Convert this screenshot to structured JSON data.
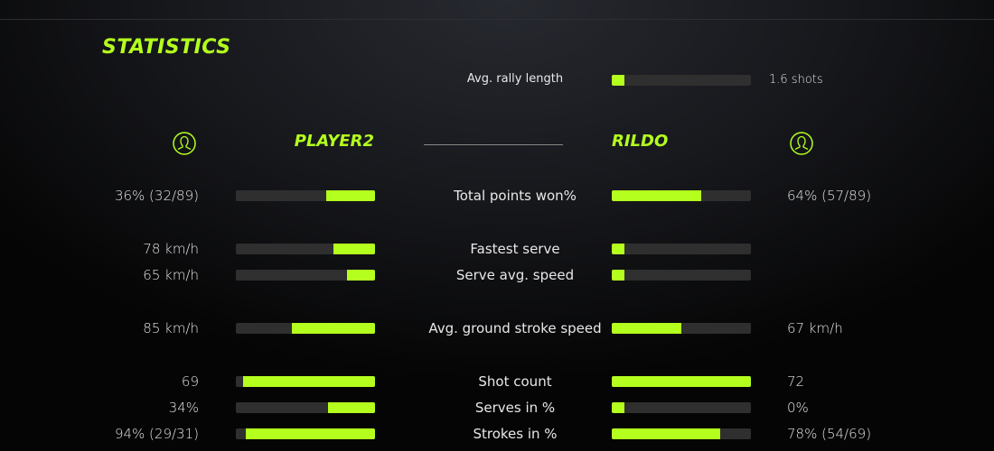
{
  "title": "STATISTICS",
  "accent": "#b4ff1e",
  "rally": {
    "label": "Avg. rally length",
    "value": "1.6 shots",
    "fill": 0.09
  },
  "players": {
    "left": {
      "name": "PLAYER2",
      "icon": "user-circle-icon"
    },
    "right": {
      "name": "RILDO",
      "icon": "user-circle-icon"
    }
  },
  "rows": [
    {
      "label": "Total points won%",
      "left": "36% (32/89)",
      "right": "64% (57/89)",
      "left_fill": 0.35,
      "right_fill": 0.64
    },
    {
      "label": "Fastest serve",
      "left": "78 km/h",
      "right": "",
      "left_fill": 0.3,
      "right_fill": 0.09
    },
    {
      "label": "Serve avg. speed",
      "left": "65 km/h",
      "right": "",
      "left_fill": 0.2,
      "right_fill": 0.09
    },
    {
      "label": "Avg. ground stroke speed",
      "left": "85 km/h",
      "right": "67 km/h",
      "left_fill": 0.6,
      "right_fill": 0.5
    },
    {
      "label": "Shot count",
      "left": "69",
      "right": "72",
      "left_fill": 0.95,
      "right_fill": 1.0
    },
    {
      "label": "Serves in %",
      "left": "34%",
      "right": "0%",
      "left_fill": 0.34,
      "right_fill": 0.09
    },
    {
      "label": "Strokes in %",
      "left": "94% (29/31)",
      "right": "78% (54/69)",
      "left_fill": 0.93,
      "right_fill": 0.78
    }
  ]
}
